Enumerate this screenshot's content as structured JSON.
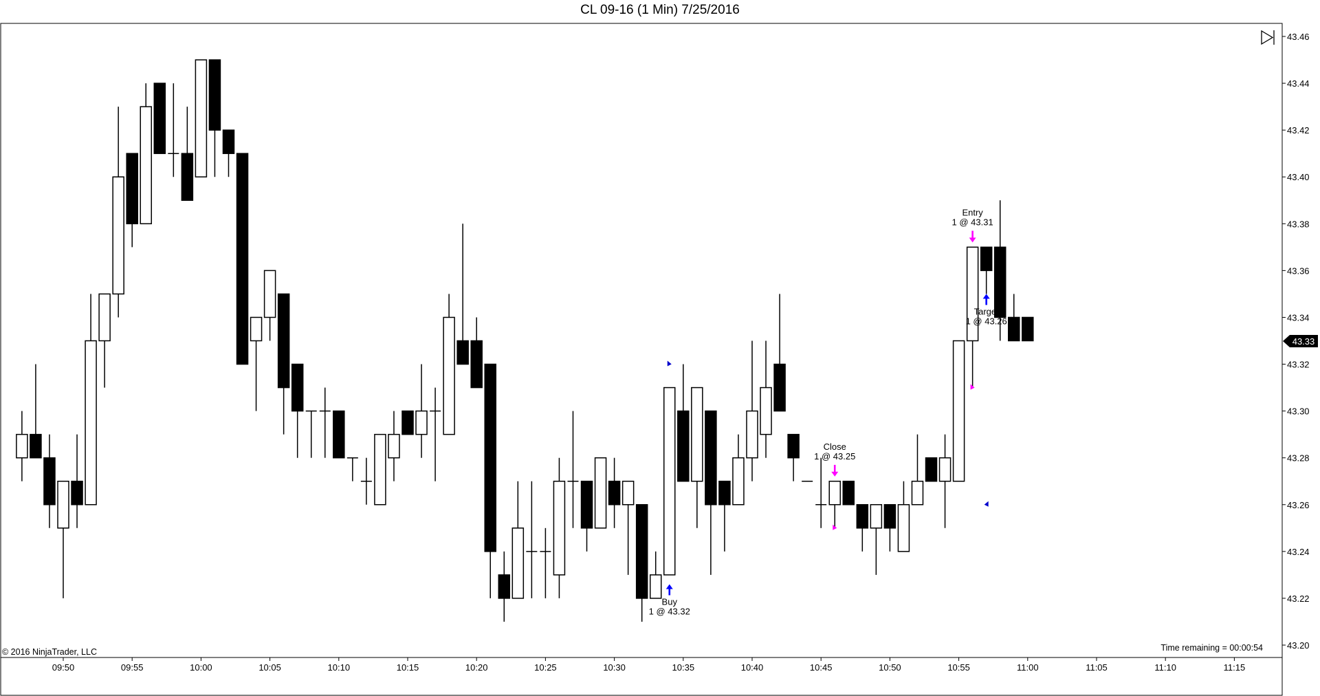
{
  "chart_data": {
    "type": "candlestick",
    "title": "CL 09-16 (1 Min)  7/25/2016",
    "copyright": "© 2016 NinjaTrader, LLC",
    "time_remaining": "Time remaining = 00:00:54",
    "last_price_label": "43.33",
    "ylim": [
      43.195,
      43.465
    ],
    "y_ticks": [
      "43.20",
      "43.22",
      "43.24",
      "43.26",
      "43.28",
      "43.30",
      "43.32",
      "43.34",
      "43.36",
      "43.38",
      "43.40",
      "43.42",
      "43.44",
      "43.46"
    ],
    "x_ticks": [
      "09:50",
      "09:55",
      "10:00",
      "10:05",
      "10:10",
      "10:15",
      "10:20",
      "10:25",
      "10:30",
      "10:35",
      "10:40",
      "10:45",
      "10:50",
      "10:55",
      "11:00",
      "11:05",
      "11:10",
      "11:15"
    ],
    "candles": [
      {
        "t": "09:47",
        "o": 43.28,
        "h": 43.3,
        "l": 43.27,
        "c": 43.29
      },
      {
        "t": "09:48",
        "o": 43.29,
        "h": 43.32,
        "l": 43.28,
        "c": 43.28
      },
      {
        "t": "09:49",
        "o": 43.28,
        "h": 43.29,
        "l": 43.25,
        "c": 43.26
      },
      {
        "t": "09:50",
        "o": 43.25,
        "h": 43.27,
        "l": 43.22,
        "c": 43.27
      },
      {
        "t": "09:51",
        "o": 43.27,
        "h": 43.29,
        "l": 43.25,
        "c": 43.26
      },
      {
        "t": "09:52",
        "o": 43.26,
        "h": 43.35,
        "l": 43.26,
        "c": 43.33
      },
      {
        "t": "09:53",
        "o": 43.33,
        "h": 43.35,
        "l": 43.31,
        "c": 43.35
      },
      {
        "t": "09:54",
        "o": 43.35,
        "h": 43.43,
        "l": 43.34,
        "c": 43.4
      },
      {
        "t": "09:55",
        "o": 43.41,
        "h": 43.41,
        "l": 43.37,
        "c": 43.38
      },
      {
        "t": "09:56",
        "o": 43.38,
        "h": 43.44,
        "l": 43.38,
        "c": 43.43
      },
      {
        "t": "09:57",
        "o": 43.44,
        "h": 43.44,
        "l": 43.41,
        "c": 43.41
      },
      {
        "t": "09:58",
        "o": 43.41,
        "h": 43.44,
        "l": 43.4,
        "c": 43.41
      },
      {
        "t": "09:59",
        "o": 43.41,
        "h": 43.43,
        "l": 43.39,
        "c": 43.39
      },
      {
        "t": "10:00",
        "o": 43.4,
        "h": 43.45,
        "l": 43.4,
        "c": 43.45
      },
      {
        "t": "10:01",
        "o": 43.45,
        "h": 43.45,
        "l": 43.4,
        "c": 43.42
      },
      {
        "t": "10:02",
        "o": 43.42,
        "h": 43.42,
        "l": 43.4,
        "c": 43.41
      },
      {
        "t": "10:03",
        "o": 43.41,
        "h": 43.41,
        "l": 43.32,
        "c": 43.32
      },
      {
        "t": "10:04",
        "o": 43.33,
        "h": 43.34,
        "l": 43.3,
        "c": 43.34
      },
      {
        "t": "10:05",
        "o": 43.34,
        "h": 43.36,
        "l": 43.33,
        "c": 43.36
      },
      {
        "t": "10:06",
        "o": 43.35,
        "h": 43.35,
        "l": 43.29,
        "c": 43.31
      },
      {
        "t": "10:07",
        "o": 43.32,
        "h": 43.32,
        "l": 43.28,
        "c": 43.3
      },
      {
        "t": "10:08",
        "o": 43.3,
        "h": 43.3,
        "l": 43.28,
        "c": 43.3
      },
      {
        "t": "10:09",
        "o": 43.3,
        "h": 43.31,
        "l": 43.28,
        "c": 43.3
      },
      {
        "t": "10:10",
        "o": 43.3,
        "h": 43.3,
        "l": 43.28,
        "c": 43.28
      },
      {
        "t": "10:11",
        "o": 43.28,
        "h": 43.28,
        "l": 43.27,
        "c": 43.28
      },
      {
        "t": "10:12",
        "o": 43.27,
        "h": 43.28,
        "l": 43.26,
        "c": 43.27
      },
      {
        "t": "10:13",
        "o": 43.26,
        "h": 43.29,
        "l": 43.26,
        "c": 43.29
      },
      {
        "t": "10:14",
        "o": 43.28,
        "h": 43.3,
        "l": 43.27,
        "c": 43.29
      },
      {
        "t": "10:15",
        "o": 43.3,
        "h": 43.3,
        "l": 43.29,
        "c": 43.29
      },
      {
        "t": "10:16",
        "o": 43.29,
        "h": 43.32,
        "l": 43.28,
        "c": 43.3
      },
      {
        "t": "10:17",
        "o": 43.3,
        "h": 43.31,
        "l": 43.27,
        "c": 43.3
      },
      {
        "t": "10:18",
        "o": 43.29,
        "h": 43.35,
        "l": 43.29,
        "c": 43.34
      },
      {
        "t": "10:19",
        "o": 43.33,
        "h": 43.38,
        "l": 43.32,
        "c": 43.32
      },
      {
        "t": "10:20",
        "o": 43.33,
        "h": 43.34,
        "l": 43.31,
        "c": 43.31
      },
      {
        "t": "10:21",
        "o": 43.32,
        "h": 43.32,
        "l": 43.22,
        "c": 43.24
      },
      {
        "t": "10:22",
        "o": 43.23,
        "h": 43.24,
        "l": 43.21,
        "c": 43.22
      },
      {
        "t": "10:23",
        "o": 43.22,
        "h": 43.27,
        "l": 43.22,
        "c": 43.25
      },
      {
        "t": "10:24",
        "o": 43.24,
        "h": 43.27,
        "l": 43.22,
        "c": 43.24
      },
      {
        "t": "10:25",
        "o": 43.24,
        "h": 43.25,
        "l": 43.22,
        "c": 43.24
      },
      {
        "t": "10:26",
        "o": 43.23,
        "h": 43.28,
        "l": 43.22,
        "c": 43.27
      },
      {
        "t": "10:27",
        "o": 43.27,
        "h": 43.3,
        "l": 43.25,
        "c": 43.27
      },
      {
        "t": "10:28",
        "o": 43.27,
        "h": 43.27,
        "l": 43.24,
        "c": 43.25
      },
      {
        "t": "10:29",
        "o": 43.25,
        "h": 43.28,
        "l": 43.25,
        "c": 43.28
      },
      {
        "t": "10:30",
        "o": 43.27,
        "h": 43.28,
        "l": 43.25,
        "c": 43.26
      },
      {
        "t": "10:31",
        "o": 43.26,
        "h": 43.27,
        "l": 43.23,
        "c": 43.27
      },
      {
        "t": "10:32",
        "o": 43.26,
        "h": 43.26,
        "l": 43.21,
        "c": 43.22
      },
      {
        "t": "10:33",
        "o": 43.22,
        "h": 43.24,
        "l": 43.22,
        "c": 43.23
      },
      {
        "t": "10:34",
        "o": 43.23,
        "h": 43.31,
        "l": 43.23,
        "c": 43.31
      },
      {
        "t": "10:35",
        "o": 43.3,
        "h": 43.32,
        "l": 43.27,
        "c": 43.27
      },
      {
        "t": "10:36",
        "o": 43.27,
        "h": 43.31,
        "l": 43.25,
        "c": 43.31
      },
      {
        "t": "10:37",
        "o": 43.3,
        "h": 43.3,
        "l": 43.23,
        "c": 43.26
      },
      {
        "t": "10:38",
        "o": 43.27,
        "h": 43.27,
        "l": 43.24,
        "c": 43.26
      },
      {
        "t": "10:39",
        "o": 43.26,
        "h": 43.29,
        "l": 43.26,
        "c": 43.28
      },
      {
        "t": "10:40",
        "o": 43.28,
        "h": 43.33,
        "l": 43.27,
        "c": 43.3
      },
      {
        "t": "10:41",
        "o": 43.29,
        "h": 43.33,
        "l": 43.28,
        "c": 43.31
      },
      {
        "t": "10:42",
        "o": 43.32,
        "h": 43.35,
        "l": 43.3,
        "c": 43.3
      },
      {
        "t": "10:43",
        "o": 43.29,
        "h": 43.29,
        "l": 43.27,
        "c": 43.28
      },
      {
        "t": "10:44",
        "o": 43.27,
        "h": 43.27,
        "l": 43.27,
        "c": 43.27
      },
      {
        "t": "10:45",
        "o": 43.26,
        "h": 43.28,
        "l": 43.25,
        "c": 43.26
      },
      {
        "t": "10:46",
        "o": 43.26,
        "h": 43.27,
        "l": 43.25,
        "c": 43.27
      },
      {
        "t": "10:47",
        "o": 43.27,
        "h": 43.27,
        "l": 43.26,
        "c": 43.26
      },
      {
        "t": "10:48",
        "o": 43.26,
        "h": 43.26,
        "l": 43.24,
        "c": 43.25
      },
      {
        "t": "10:49",
        "o": 43.25,
        "h": 43.26,
        "l": 43.23,
        "c": 43.26
      },
      {
        "t": "10:50",
        "o": 43.26,
        "h": 43.26,
        "l": 43.24,
        "c": 43.25
      },
      {
        "t": "10:51",
        "o": 43.24,
        "h": 43.27,
        "l": 43.24,
        "c": 43.26
      },
      {
        "t": "10:52",
        "o": 43.26,
        "h": 43.29,
        "l": 43.26,
        "c": 43.27
      },
      {
        "t": "10:53",
        "o": 43.28,
        "h": 43.28,
        "l": 43.27,
        "c": 43.27
      },
      {
        "t": "10:54",
        "o": 43.27,
        "h": 43.29,
        "l": 43.25,
        "c": 43.28
      },
      {
        "t": "10:55",
        "o": 43.27,
        "h": 43.33,
        "l": 43.27,
        "c": 43.33
      },
      {
        "t": "10:56",
        "o": 43.33,
        "h": 43.37,
        "l": 43.31,
        "c": 43.37
      },
      {
        "t": "10:57",
        "o": 43.37,
        "h": 43.37,
        "l": 43.35,
        "c": 43.36
      },
      {
        "t": "10:58",
        "o": 43.37,
        "h": 43.39,
        "l": 43.33,
        "c": 43.34
      },
      {
        "t": "10:59",
        "o": 43.34,
        "h": 43.35,
        "l": 43.33,
        "c": 43.33
      },
      {
        "t": "11:00",
        "o": 43.34,
        "h": 43.34,
        "l": 43.33,
        "c": 43.33
      }
    ],
    "annotations": [
      {
        "name": "buy",
        "label": "Buy",
        "sub": "1 @ 43.32",
        "arrow": "up",
        "color": "#0000ff",
        "t": "10:34",
        "price": 43.226
      },
      {
        "name": "close",
        "label": "Close",
        "sub": "1 @ 43.25",
        "arrow": "down",
        "color": "#ff00ff",
        "t": "10:46",
        "price": 43.272
      },
      {
        "name": "entry",
        "label": "Entry",
        "sub": "1 @ 43.31",
        "arrow": "down",
        "color": "#ff00ff",
        "t": "10:56",
        "price": 43.372
      },
      {
        "name": "target",
        "label": "Target",
        "sub": "1 @ 43.26",
        "arrow": "up",
        "color": "#0000ff",
        "t": "10:57",
        "price": 43.35
      }
    ],
    "markers": [
      {
        "t": "10:34",
        "price": 43.32,
        "color": "#0000cc",
        "dir": "right"
      },
      {
        "t": "10:46",
        "price": 43.25,
        "color": "#ff00ff",
        "dir": "right"
      },
      {
        "t": "10:56",
        "price": 43.31,
        "color": "#ff00ff",
        "dir": "right"
      },
      {
        "t": "10:57",
        "price": 43.26,
        "color": "#0000cc",
        "dir": "left"
      }
    ]
  }
}
